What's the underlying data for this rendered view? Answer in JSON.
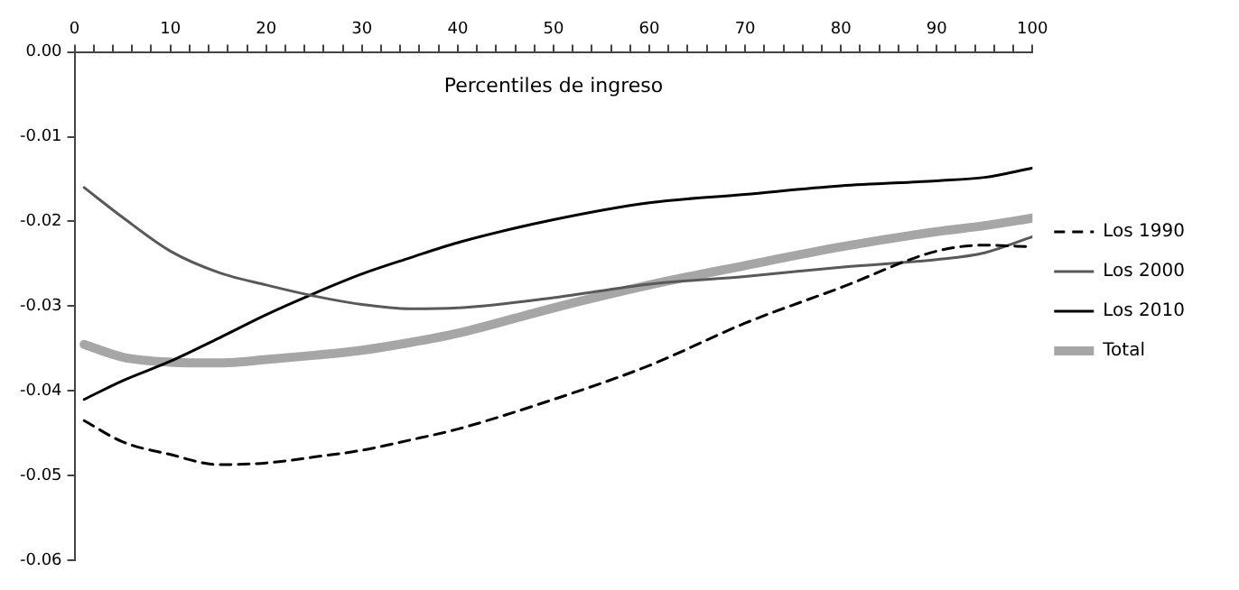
{
  "chart_data": {
    "type": "line",
    "xlabel": "Percentiles de ingreso",
    "xlim": [
      0,
      100
    ],
    "xticks": [
      0,
      {
        "value": 2,
        "label": null
      },
      {
        "value": 4,
        "label": null
      },
      {
        "value": 6,
        "label": null
      },
      {
        "value": 8,
        "label": null
      },
      10,
      {
        "value": 12,
        "label": null
      },
      {
        "value": 14,
        "label": null
      },
      {
        "value": 16,
        "label": null
      },
      {
        "value": 18,
        "label": null
      },
      20,
      {
        "value": 22,
        "label": null
      },
      {
        "value": 24,
        "label": null
      },
      {
        "value": 26,
        "label": null
      },
      {
        "value": 28,
        "label": null
      },
      30,
      {
        "value": 32,
        "label": null
      },
      {
        "value": 34,
        "label": null
      },
      {
        "value": 36,
        "label": null
      },
      {
        "value": 38,
        "label": null
      },
      40,
      {
        "value": 42,
        "label": null
      },
      {
        "value": 44,
        "label": null
      },
      {
        "value": 46,
        "label": null
      },
      {
        "value": 48,
        "label": null
      },
      50,
      {
        "value": 52,
        "label": null
      },
      {
        "value": 54,
        "label": null
      },
      {
        "value": 56,
        "label": null
      },
      {
        "value": 58,
        "label": null
      },
      60,
      {
        "value": 62,
        "label": null
      },
      {
        "value": 64,
        "label": null
      },
      {
        "value": 66,
        "label": null
      },
      {
        "value": 68,
        "label": null
      },
      70,
      {
        "value": 72,
        "label": null
      },
      {
        "value": 74,
        "label": null
      },
      {
        "value": 76,
        "label": null
      },
      {
        "value": 78,
        "label": null
      },
      80,
      {
        "value": 82,
        "label": null
      },
      {
        "value": 84,
        "label": null
      },
      {
        "value": 86,
        "label": null
      },
      {
        "value": 88,
        "label": null
      },
      90,
      {
        "value": 92,
        "label": null
      },
      {
        "value": 94,
        "label": null
      },
      {
        "value": 96,
        "label": null
      },
      {
        "value": 98,
        "label": null
      },
      100
    ],
    "ylim": [
      -0.06,
      0
    ],
    "yticks": [
      {
        "value": 0,
        "label": "0.00"
      },
      -0.01,
      -0.02,
      -0.03,
      -0.04,
      -0.05,
      -0.06
    ],
    "x": [
      1,
      5,
      10,
      15,
      20,
      25,
      30,
      35,
      40,
      50,
      60,
      70,
      80,
      90,
      95,
      100
    ],
    "series": [
      {
        "name": "Los 1990",
        "color": "#000000",
        "line_style": "dashed",
        "values": [
          -0.0435,
          -0.046,
          -0.0475,
          -0.0487,
          -0.0485,
          -0.0478,
          -0.047,
          -0.0458,
          -0.0445,
          -0.041,
          -0.037,
          -0.032,
          -0.0278,
          -0.0235,
          -0.0228,
          -0.023
        ]
      },
      {
        "name": "Los 2000",
        "color": "#595959",
        "line_style": "solid",
        "values": [
          -0.016,
          -0.0195,
          -0.0235,
          -0.026,
          -0.0275,
          -0.0288,
          -0.0298,
          -0.0303,
          -0.0302,
          -0.029,
          -0.0274,
          -0.0265,
          -0.0254,
          -0.0245,
          -0.0237,
          -0.0218
        ]
      },
      {
        "name": "Los 2010",
        "color": "#000000",
        "line_style": "solid",
        "values": [
          -0.041,
          -0.0388,
          -0.0365,
          -0.0338,
          -0.031,
          -0.0285,
          -0.0262,
          -0.0243,
          -0.0225,
          -0.0198,
          -0.0178,
          -0.0168,
          -0.0158,
          -0.0152,
          -0.0148,
          -0.0137
        ]
      },
      {
        "name": "Total",
        "color": "#a6a6a6",
        "line_style": "solid",
        "values": [
          -0.0345,
          -0.036,
          -0.0366,
          -0.0367,
          -0.0363,
          -0.0358,
          -0.0352,
          -0.0343,
          -0.0332,
          -0.0302,
          -0.0275,
          -0.0252,
          -0.023,
          -0.0212,
          -0.0205,
          -0.0196
        ]
      }
    ],
    "grid": false,
    "legend": "right",
    "marker": "none"
  }
}
